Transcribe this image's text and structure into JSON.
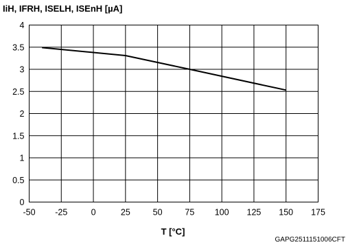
{
  "chart_data": {
    "type": "line",
    "ylabel": "IiH, IFRH, ISELH, ISEnH [µA]",
    "xlabel": "T [°C]",
    "xlim": [
      -50,
      175
    ],
    "ylim": [
      0,
      4
    ],
    "xticks": [
      -50,
      -25,
      0,
      25,
      50,
      75,
      100,
      125,
      150,
      175
    ],
    "yticks": [
      0,
      0.5,
      1,
      1.5,
      2,
      2.5,
      3,
      3.5,
      4
    ],
    "xtick_labels": [
      "-50",
      "-25",
      "0",
      "25",
      "50",
      "75",
      "100",
      "125",
      "150",
      "175"
    ],
    "ytick_labels": [
      "0",
      "0.5",
      "1",
      "1.5",
      "2",
      "2.5",
      "3",
      "3.5",
      "4"
    ],
    "grid": true,
    "series": [
      {
        "x": [
          -40,
          25,
          75,
          150
        ],
        "y": [
          3.49,
          3.31,
          3.0,
          2.53
        ]
      }
    ],
    "colors": {
      "line": "#000000",
      "grid": "#000000",
      "background": "#ffffff"
    }
  },
  "figure_code": "GAPG2511151006CFT"
}
